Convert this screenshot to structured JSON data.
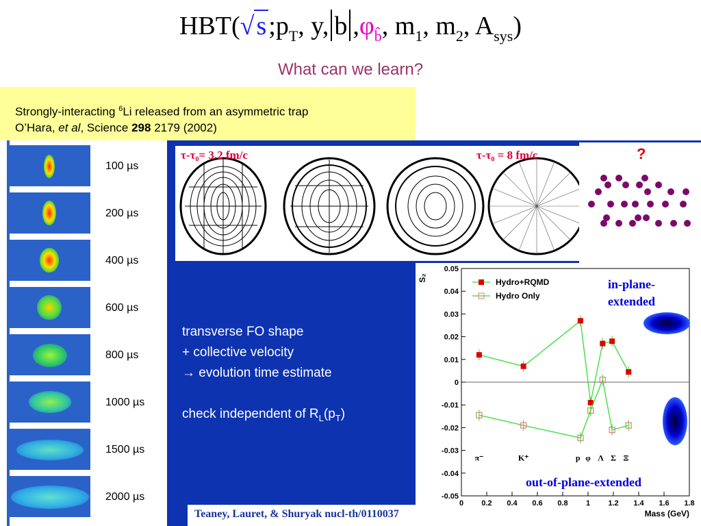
{
  "formula": {
    "hbt": "HBT(",
    "s": "s",
    "sep1": ";p",
    "t": "T",
    "mid": ", y,",
    "b": "b",
    "comma": ",",
    "phi": "φ",
    "bhat": "b̂",
    "m": ", m",
    "one": "1",
    "m2": ", m",
    "two": "2",
    "a": ", A",
    "sys": "sys",
    "close": ")"
  },
  "subtitle": "What can we learn?",
  "reference_top": {
    "line1_pre": "Strongly-interacting ",
    "line1_sup": "6",
    "line1_post": "Li released from an asymmetric trap",
    "line2_pre": "O’Hara, ",
    "line2_em": "et al",
    "line2_mid": ", Science ",
    "line2_bold": "298",
    "line2_post": " 2179 (2002)"
  },
  "trap_times": [
    "100 µs",
    "200 µs",
    "400 µs",
    "600 µs",
    "800 µs",
    "1000 µs",
    "1500 µs",
    "2000 µs"
  ],
  "sim": {
    "label_left": "τ-τ₀= 3.2 fm/c",
    "label_right": "τ-τ₀ = 8 fm/c",
    "question": "?"
  },
  "bullets": {
    "l1": "transverse FO shape",
    "l2": "+ collective velocity",
    "l3": "→ evolution time estimate",
    "l4_pre": "check independent of R",
    "l4_sub": "L",
    "l4_mid": "(p",
    "l4_sub2": "T",
    "l4_post": ")"
  },
  "annotations": {
    "in_plane_1": "in-plane-",
    "in_plane_2": "extended",
    "out_plane": "out-of-plane-extended"
  },
  "footer": "Teaney, Lauret, & Shuryak nucl-th/0110037",
  "colors": {
    "background_blue": "#0d33b0",
    "yellow": "#ffff99",
    "series_filled": "#e00000",
    "series_line": "#33dd33",
    "series_open": "#e07a7a"
  },
  "chart_data": {
    "type": "line",
    "xlabel": "Mass (GeV)",
    "ylabel": "S₂",
    "xlim": [
      0,
      1.8
    ],
    "ylim": [
      -0.05,
      0.05
    ],
    "x_ticks": [
      "0",
      "0.2",
      "0.4",
      "0.6",
      "0.8",
      "1",
      "1.2",
      "1.4",
      "1.6",
      "1.8"
    ],
    "y_ticks": [
      "-0.05",
      "-0.04",
      "-0.03",
      "-0.02",
      "-0.01",
      "0",
      "0.01",
      "0.02",
      "0.03",
      "0.04",
      "0.05"
    ],
    "particle_labels": [
      "π⁻",
      "K⁺",
      "p",
      "φ",
      "Λ",
      "Σ",
      "Ξ"
    ],
    "series": [
      {
        "name": "Hydro+RQMD",
        "marker": "filled-square",
        "x": [
          0.14,
          0.49,
          0.94,
          1.02,
          1.115,
          1.19,
          1.32
        ],
        "y": [
          0.012,
          0.007,
          0.027,
          -0.009,
          0.017,
          0.018,
          0.0045
        ]
      },
      {
        "name": "Hydro Only",
        "marker": "open-square",
        "x": [
          0.14,
          0.49,
          0.94,
          1.02,
          1.115,
          1.19,
          1.32
        ],
        "y": [
          -0.0145,
          -0.019,
          -0.0245,
          -0.0125,
          0.001,
          -0.021,
          -0.019
        ]
      }
    ],
    "legend_position": "top-left"
  }
}
